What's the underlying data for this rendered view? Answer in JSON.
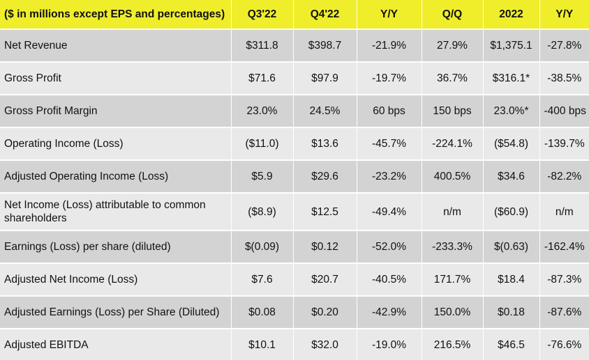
{
  "table": {
    "headers": [
      "($ in millions except EPS and percentages)",
      "Q3'22",
      "Q4'22",
      "Y/Y",
      "Q/Q",
      "2022",
      "Y/Y"
    ],
    "rows": [
      {
        "metric": "Net Revenue",
        "values": [
          "$311.8",
          "$398.7",
          "-21.9%",
          "27.9%",
          "$1,375.1",
          "-27.8%"
        ]
      },
      {
        "metric": "Gross Profit",
        "values": [
          "$71.6",
          "$97.9",
          "-19.7%",
          "36.7%",
          "$316.1*",
          "-38.5%"
        ]
      },
      {
        "metric": "Gross Profit Margin",
        "values": [
          "23.0%",
          "24.5%",
          "60 bps",
          "150 bps",
          "23.0%*",
          "-400 bps"
        ]
      },
      {
        "metric": "Operating Income (Loss)",
        "values": [
          "($11.0)",
          "$13.6",
          "-45.7%",
          "-224.1%",
          "($54.8)",
          "-139.7%"
        ]
      },
      {
        "metric": "Adjusted Operating Income (Loss)",
        "values": [
          "$5.9",
          "$29.6",
          "-23.2%",
          "400.5%",
          "$34.6",
          "-82.2%"
        ]
      },
      {
        "metric": "Net Income (Loss) attributable to common shareholders",
        "values": [
          "($8.9)",
          "$12.5",
          "-49.4%",
          "n/m",
          "($60.9)",
          "n/m"
        ]
      },
      {
        "metric": "Earnings (Loss) per share (diluted)",
        "values": [
          "$(0.09)",
          "$0.12",
          "-52.0%",
          "-233.3%",
          "$(0.63)",
          "-162.4%"
        ]
      },
      {
        "metric": "Adjusted Net Income (Loss)",
        "values": [
          "$7.6",
          "$20.7",
          "-40.5%",
          "171.7%",
          "$18.4",
          "-87.3%"
        ]
      },
      {
        "metric": "Adjusted Earnings (Loss) per Share (Diluted)",
        "values": [
          "$0.08",
          "$0.20",
          "-42.9%",
          "150.0%",
          "$0.18",
          "-87.6%"
        ]
      },
      {
        "metric": "Adjusted EBITDA",
        "values": [
          "$10.1",
          "$32.0",
          "-19.0%",
          "216.5%",
          "$46.5",
          "-76.6%"
        ]
      }
    ]
  },
  "colors": {
    "header_bg": "#f0ee2a",
    "row_dark": "#d3d3d3",
    "row_light": "#e9e9e9"
  }
}
